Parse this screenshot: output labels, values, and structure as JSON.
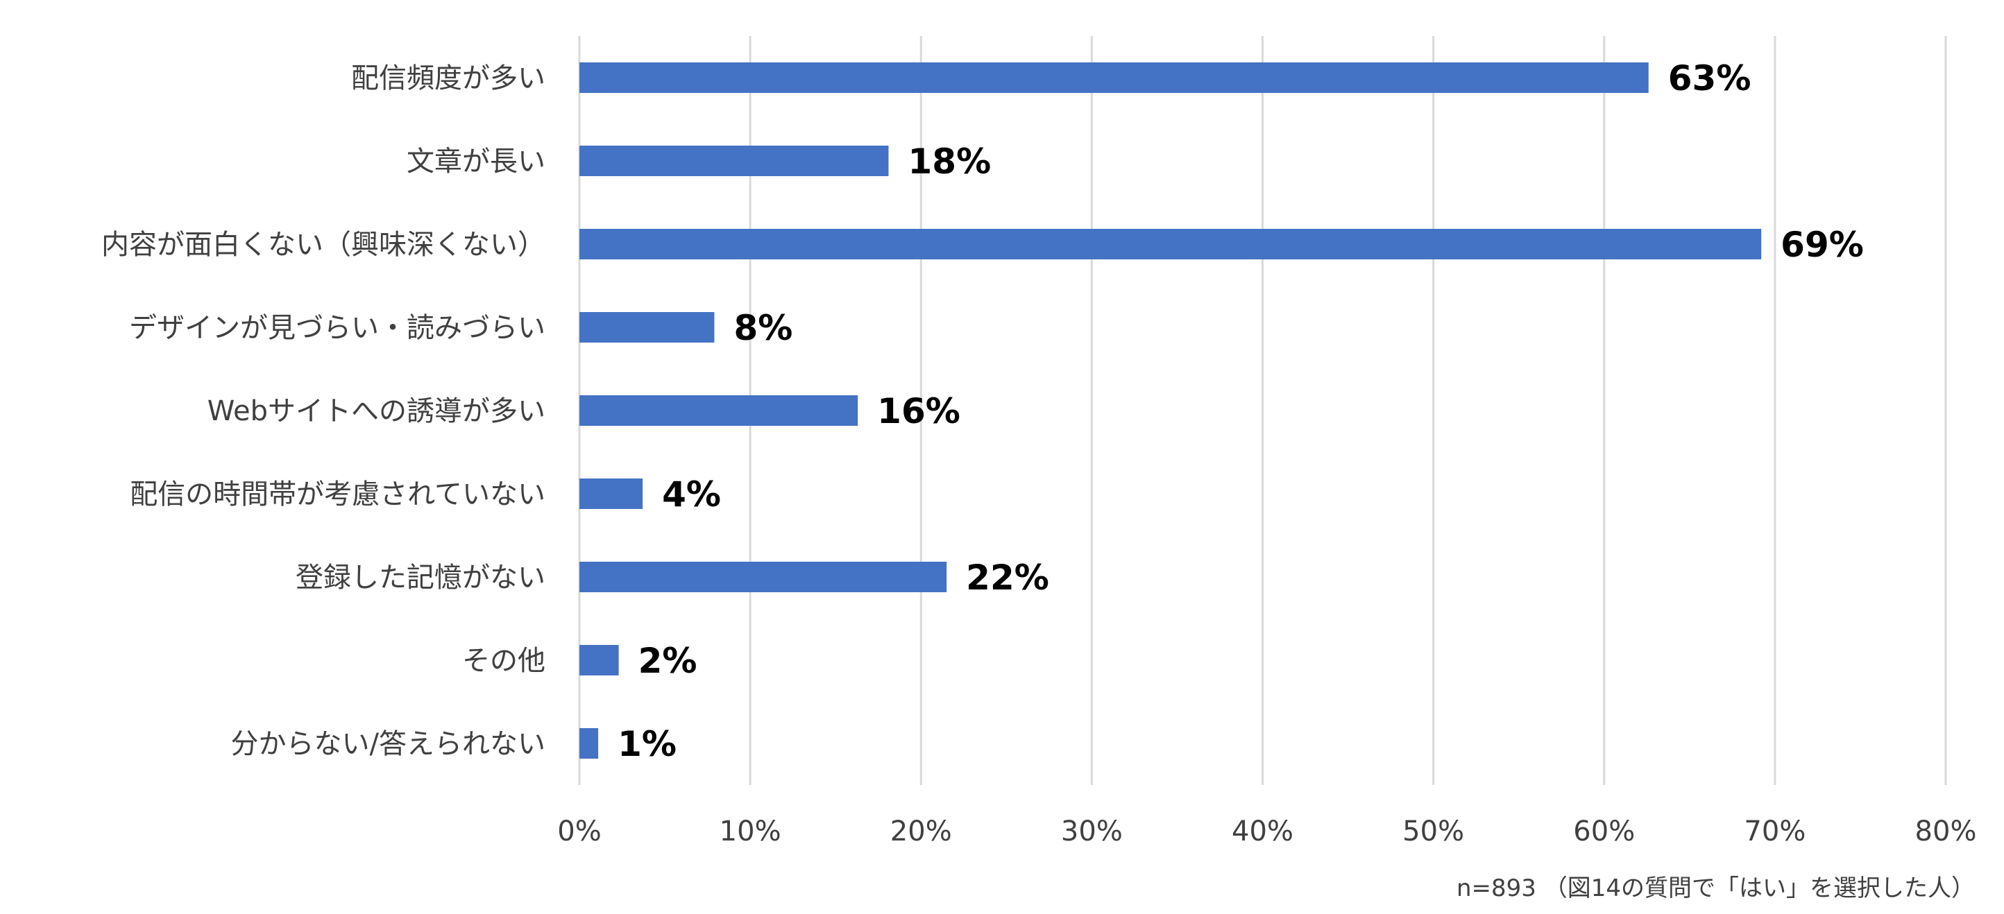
{
  "chart_data": {
    "type": "bar",
    "orientation": "horizontal",
    "categories": [
      "配信頻度が多い",
      "文章が長い",
      "内容が面白くない（興味深くない）",
      "デザインが見づらい・読みづらい",
      "Webサイトへの誘導が多い",
      "配信の時間帯が考慮されていない",
      "登録した記憶がない",
      "その他",
      "分からない/答えられない"
    ],
    "values": [
      62.6,
      18.1,
      69.2,
      7.9,
      16.3,
      3.7,
      21.5,
      2.3,
      1.1
    ],
    "data_labels": [
      "63%",
      "18%",
      "69%",
      "8%",
      "16%",
      "4%",
      "22%",
      "2%",
      "1%"
    ],
    "xlim": [
      0,
      80
    ],
    "xticks": [
      0,
      10,
      20,
      30,
      40,
      50,
      60,
      70,
      80
    ],
    "xtick_labels": [
      "0%",
      "10%",
      "20%",
      "30%",
      "40%",
      "50%",
      "60%",
      "70%",
      "80%"
    ],
    "grid": true,
    "bar_color": "#4472c4",
    "title": "",
    "xlabel": "",
    "ylabel": ""
  },
  "note": "n=893 （図14の質問で「はい」を選択した人）"
}
